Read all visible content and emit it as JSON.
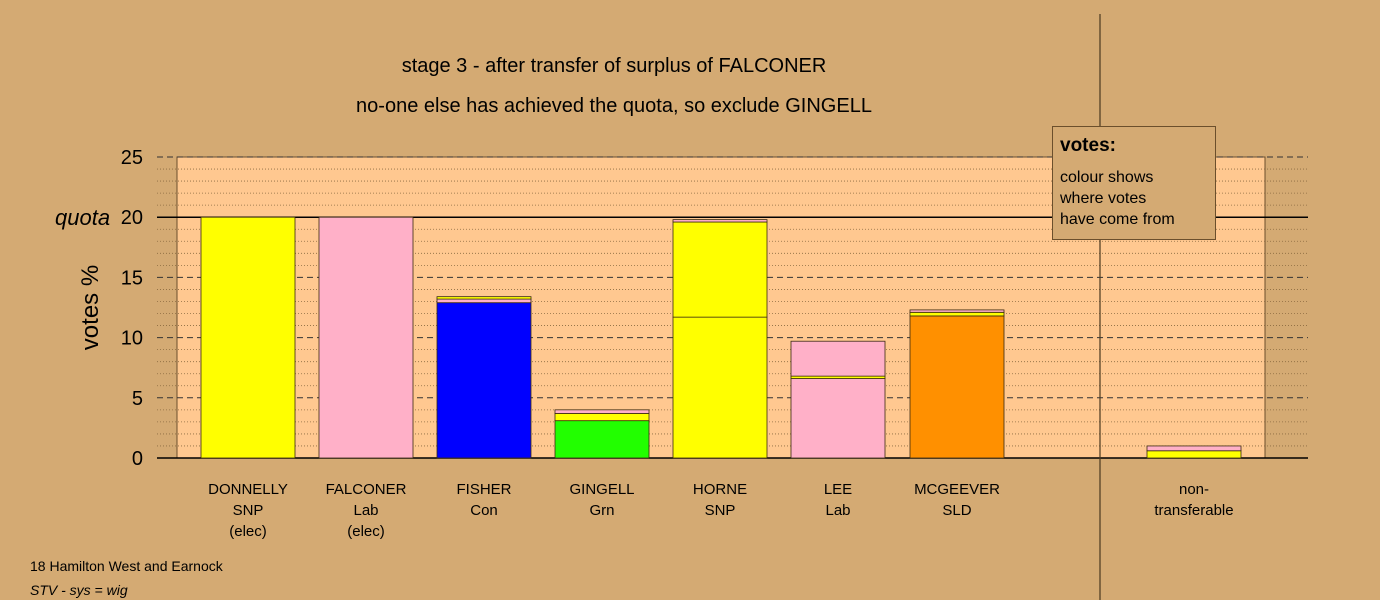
{
  "chart_data": {
    "type": "bar",
    "title": "stage 3 - after transfer of surplus of FALCONER",
    "subtitle": "no-one else has achieved the quota, so exclude GINGELL",
    "ylabel": "votes %",
    "ylim": [
      0,
      25
    ],
    "yticks": [
      0,
      5,
      10,
      15,
      20,
      25
    ],
    "quota": 20,
    "quota_label": "quota",
    "grid": true,
    "categories": [
      {
        "name": "DONNELLY",
        "party": "SNP",
        "note": "(elec)"
      },
      {
        "name": "FALCONER",
        "party": "Lab",
        "note": "(elec)"
      },
      {
        "name": "FISHER",
        "party": "Con",
        "note": ""
      },
      {
        "name": "GINGELL",
        "party": "Grn",
        "note": ""
      },
      {
        "name": "HORNE",
        "party": "SNP",
        "note": ""
      },
      {
        "name": "LEE",
        "party": "Lab",
        "note": ""
      },
      {
        "name": "MCGEEVER",
        "party": "SLD",
        "note": ""
      },
      {
        "name": "non-",
        "party": "transferable",
        "note": ""
      }
    ],
    "stacks": [
      [
        {
          "value": 20.0,
          "color": "#ffff00"
        }
      ],
      [
        {
          "value": 20.0,
          "color": "#ffb0c8"
        }
      ],
      [
        {
          "value": 12.9,
          "color": "#0000ff"
        },
        {
          "value": 0.3,
          "color": "#ffb0c8"
        },
        {
          "value": 0.2,
          "color": "#ffff00"
        }
      ],
      [
        {
          "value": 3.1,
          "color": "#22ff00"
        },
        {
          "value": 0.6,
          "color": "#ffff00"
        },
        {
          "value": 0.3,
          "color": "#ffb0c8"
        }
      ],
      [
        {
          "value": 11.7,
          "color": "#ffff00"
        },
        {
          "value": 7.9,
          "color": "#ffff00"
        },
        {
          "value": 0.2,
          "color": "#ffb0c8"
        }
      ],
      [
        {
          "value": 6.6,
          "color": "#ffb0c8"
        },
        {
          "value": 0.2,
          "color": "#ffff00"
        },
        {
          "value": 2.9,
          "color": "#ffb0c8"
        }
      ],
      [
        {
          "value": 11.8,
          "color": "#ff9000"
        },
        {
          "value": 0.3,
          "color": "#ffff00"
        },
        {
          "value": 0.2,
          "color": "#ffb0c8"
        }
      ],
      [
        {
          "value": 0.6,
          "color": "#ffff00"
        },
        {
          "value": 0.4,
          "color": "#ffb0c8"
        }
      ]
    ]
  },
  "legend": {
    "title": "votes:",
    "lines": [
      "colour shows",
      "where votes",
      "have come from"
    ]
  },
  "footer": {
    "constituency": "18 Hamilton West and Earnock",
    "system": "STV - sys = wig"
  },
  "colors": {
    "background": "#d4aa73",
    "plot_area": "#ffc890"
  }
}
